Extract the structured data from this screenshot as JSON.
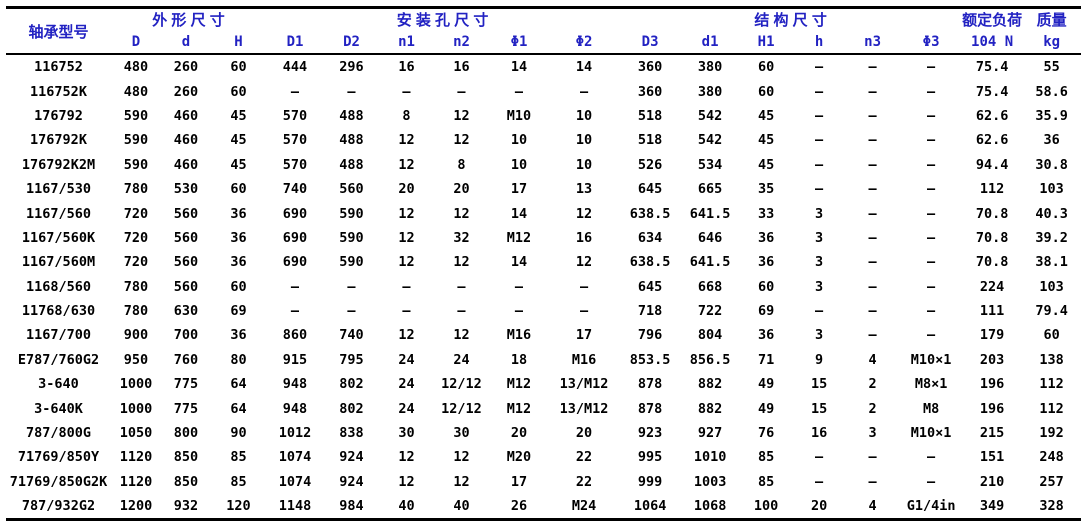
{
  "table": {
    "model_header": "轴承型号",
    "groups": [
      {
        "label": "外 形 尺 寸",
        "span": 3
      },
      {
        "label": "安 装 孔 尺 寸",
        "span": 6
      },
      {
        "label": "结 构 尺 寸",
        "span": 6
      },
      {
        "label": "额定负荷",
        "span": 1
      },
      {
        "label": "质量",
        "span": 1
      }
    ],
    "subheaders": [
      "D",
      "d",
      "H",
      "D1",
      "D2",
      "n1",
      "n2",
      "Φ1",
      "Φ2",
      "D3",
      "d1",
      "H1",
      "h",
      "n3",
      "Φ3",
      "104 N",
      "kg"
    ],
    "rows": [
      [
        "116752",
        "480",
        "260",
        "60",
        "444",
        "296",
        "16",
        "16",
        "14",
        "14",
        "360",
        "380",
        "60",
        "—",
        "—",
        "—",
        "75.4",
        "55"
      ],
      [
        "116752K",
        "480",
        "260",
        "60",
        "—",
        "—",
        "—",
        "—",
        "—",
        "—",
        "360",
        "380",
        "60",
        "—",
        "—",
        "—",
        "75.4",
        "58.6"
      ],
      [
        "176792",
        "590",
        "460",
        "45",
        "570",
        "488",
        "8",
        "12",
        "M10",
        "10",
        "518",
        "542",
        "45",
        "—",
        "—",
        "—",
        "62.6",
        "35.9"
      ],
      [
        "176792K",
        "590",
        "460",
        "45",
        "570",
        "488",
        "12",
        "12",
        "10",
        "10",
        "518",
        "542",
        "45",
        "—",
        "—",
        "—",
        "62.6",
        "36"
      ],
      [
        "176792K2M",
        "590",
        "460",
        "45",
        "570",
        "488",
        "12",
        "8",
        "10",
        "10",
        "526",
        "534",
        "45",
        "—",
        "—",
        "—",
        "94.4",
        "30.8"
      ],
      [
        "1167/530",
        "780",
        "530",
        "60",
        "740",
        "560",
        "20",
        "20",
        "17",
        "13",
        "645",
        "665",
        "35",
        "—",
        "—",
        "—",
        "112",
        "103"
      ],
      [
        "1167/560",
        "720",
        "560",
        "36",
        "690",
        "590",
        "12",
        "12",
        "14",
        "12",
        "638.5",
        "641.5",
        "33",
        "3",
        "—",
        "—",
        "70.8",
        "40.3"
      ],
      [
        "1167/560K",
        "720",
        "560",
        "36",
        "690",
        "590",
        "12",
        "32",
        "M12",
        "16",
        "634",
        "646",
        "36",
        "3",
        "—",
        "—",
        "70.8",
        "39.2"
      ],
      [
        "1167/560M",
        "720",
        "560",
        "36",
        "690",
        "590",
        "12",
        "12",
        "14",
        "12",
        "638.5",
        "641.5",
        "36",
        "3",
        "—",
        "—",
        "70.8",
        "38.1"
      ],
      [
        "1168/560",
        "780",
        "560",
        "60",
        "—",
        "—",
        "—",
        "—",
        "—",
        "—",
        "645",
        "668",
        "60",
        "3",
        "—",
        "—",
        "224",
        "103"
      ],
      [
        "11768/630",
        "780",
        "630",
        "69",
        "—",
        "—",
        "—",
        "—",
        "—",
        "—",
        "718",
        "722",
        "69",
        "—",
        "—",
        "—",
        "111",
        "79.4"
      ],
      [
        "1167/700",
        "900",
        "700",
        "36",
        "860",
        "740",
        "12",
        "12",
        "M16",
        "17",
        "796",
        "804",
        "36",
        "3",
        "—",
        "—",
        "179",
        "60"
      ],
      [
        "E787/760G2",
        "950",
        "760",
        "80",
        "915",
        "795",
        "24",
        "24",
        "18",
        "M16",
        "853.5",
        "856.5",
        "71",
        "9",
        "4",
        "M10×1",
        "203",
        "138"
      ],
      [
        "3-640",
        "1000",
        "775",
        "64",
        "948",
        "802",
        "24",
        "12/12",
        "M12",
        "13/M12",
        "878",
        "882",
        "49",
        "15",
        "2",
        "M8×1",
        "196",
        "112"
      ],
      [
        "3-640K",
        "1000",
        "775",
        "64",
        "948",
        "802",
        "24",
        "12/12",
        "M12",
        "13/M12",
        "878",
        "882",
        "49",
        "15",
        "2",
        "M8",
        "196",
        "112"
      ],
      [
        "787/800G",
        "1050",
        "800",
        "90",
        "1012",
        "838",
        "30",
        "30",
        "20",
        "20",
        "923",
        "927",
        "76",
        "16",
        "3",
        "M10×1",
        "215",
        "192"
      ],
      [
        "71769/850Y",
        "1120",
        "850",
        "85",
        "1074",
        "924",
        "12",
        "12",
        "M20",
        "22",
        "995",
        "1010",
        "85",
        "—",
        "—",
        "—",
        "151",
        "248"
      ],
      [
        "71769/850G2K",
        "1120",
        "850",
        "85",
        "1074",
        "924",
        "12",
        "12",
        "17",
        "22",
        "999",
        "1003",
        "85",
        "—",
        "—",
        "—",
        "210",
        "257"
      ],
      [
        "787/932G2",
        "1200",
        "932",
        "120",
        "1148",
        "984",
        "40",
        "40",
        "26",
        "M24",
        "1064",
        "1068",
        "100",
        "20",
        "4",
        "G1/4in",
        "349",
        "328"
      ]
    ],
    "colors": {
      "header_text": "#2222c2",
      "body_text": "#000000",
      "border": "#000000",
      "background": "#ffffff"
    }
  }
}
